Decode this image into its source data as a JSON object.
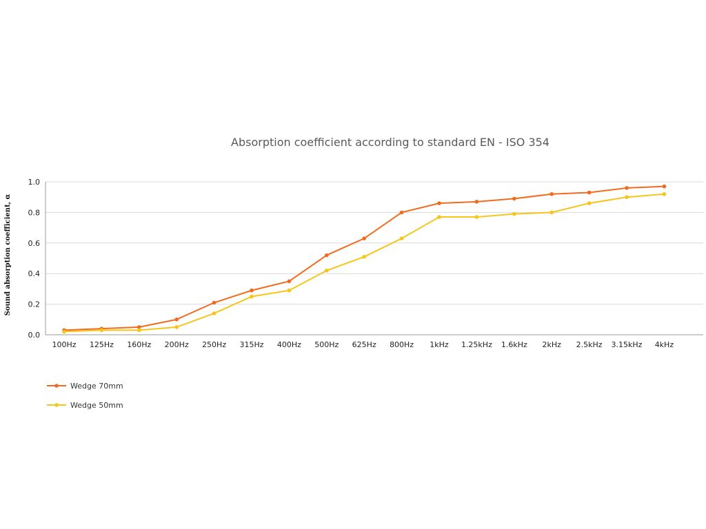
{
  "chart_data": {
    "type": "line",
    "title": "Absorption coefficient according to standard EN - ISO 354",
    "xlabel": "",
    "ylabel": "Sound absorption coefficient, α",
    "ylim": [
      0,
      1
    ],
    "yticks": [
      "0.0",
      "0.2",
      "0.4",
      "0.6",
      "0.8",
      "1.0"
    ],
    "grid": true,
    "legend_position": "bottom-left",
    "categories": [
      "100Hz",
      "125Hz",
      "160Hz",
      "200Hz",
      "250Hz",
      "315Hz",
      "400Hz",
      "500Hz",
      "625Hz",
      "800Hz",
      "1kHz",
      "1.25kHz",
      "1.6kHz",
      "2kHz",
      "2.5kHz",
      "3.15kHz",
      "4kHz"
    ],
    "series": [
      {
        "name": "Wedge 70mm",
        "color": "#f26b1d",
        "values": [
          0.03,
          0.04,
          0.05,
          0.1,
          0.21,
          0.29,
          0.35,
          0.52,
          0.63,
          0.8,
          0.86,
          0.87,
          0.89,
          0.92,
          0.93,
          0.96,
          0.97
        ]
      },
      {
        "name": "Wedge 50mm",
        "color": "#f5c518",
        "values": [
          0.02,
          0.03,
          0.03,
          0.05,
          0.14,
          0.25,
          0.29,
          0.42,
          0.51,
          0.63,
          0.77,
          0.77,
          0.79,
          0.8,
          0.86,
          0.9,
          0.92
        ]
      }
    ]
  }
}
